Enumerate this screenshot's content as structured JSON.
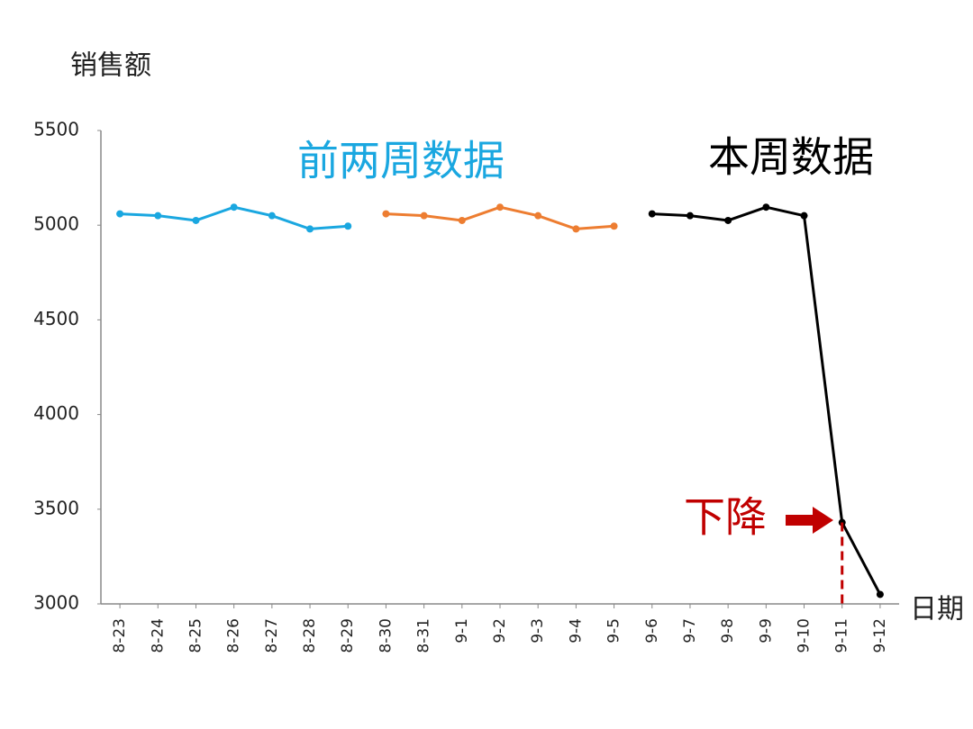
{
  "chart_data": {
    "type": "line",
    "y_label": "销售额",
    "x_label": "日期",
    "annotation": "下降",
    "categories": [
      "8-23",
      "8-24",
      "8-25",
      "8-26",
      "8-27",
      "8-28",
      "8-29",
      "8-30",
      "8-31",
      "9-1",
      "9-2",
      "9-3",
      "9-4",
      "9-5",
      "9-6",
      "9-7",
      "9-8",
      "9-9",
      "9-10",
      "9-11",
      "9-12"
    ],
    "series": [
      {
        "name": "前两周数据",
        "color": "#1aa7e0",
        "values": [
          5060,
          5050,
          5025,
          5095,
          5050,
          4980,
          4995,
          null,
          null,
          null,
          null,
          null,
          null,
          null,
          null,
          null,
          null,
          null,
          null,
          null,
          null
        ]
      },
      {
        "color": "#ed7d31",
        "values": [
          null,
          null,
          null,
          null,
          null,
          null,
          null,
          5060,
          5050,
          5025,
          5095,
          5050,
          4980,
          4995,
          null,
          null,
          null,
          null,
          null,
          null,
          null
        ]
      },
      {
        "name": "本周数据",
        "color": "#000000",
        "values": [
          null,
          null,
          null,
          null,
          null,
          null,
          null,
          null,
          null,
          null,
          null,
          null,
          null,
          null,
          5060,
          5050,
          5025,
          5095,
          5050,
          3430,
          3050
        ]
      }
    ],
    "ylim": [
      3000,
      5500
    ],
    "yticks": [
      3000,
      3500,
      4000,
      4500,
      5000,
      5500
    ],
    "grid": false,
    "annotation_color": "#c00000"
  }
}
